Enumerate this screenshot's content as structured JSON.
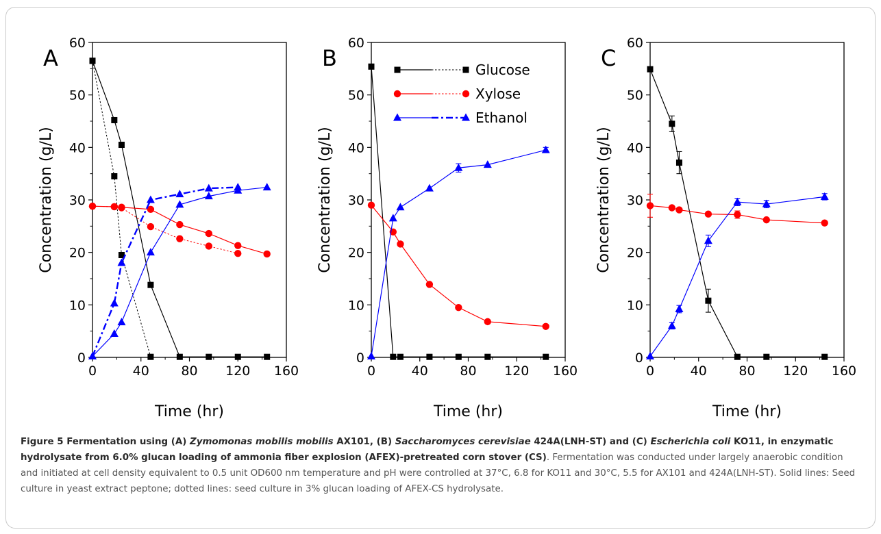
{
  "chart_data": [
    {
      "panel_label": "A",
      "type": "line",
      "xlabel": "Time (hr)",
      "ylabel": "Concentration (g/L)",
      "xlim": [
        0,
        160
      ],
      "ylim": [
        0,
        60
      ],
      "xticks": [
        0,
        40,
        80,
        120,
        160
      ],
      "yticks": [
        0,
        10,
        20,
        30,
        40,
        50,
        60
      ],
      "series": [
        {
          "name": "Glucose",
          "color": "#000000",
          "marker": "square",
          "dash": "solid",
          "x": [
            0,
            18,
            24,
            48,
            72,
            96,
            120,
            144
          ],
          "y": [
            56.5,
            45.2,
            40.5,
            13.8,
            0.1,
            0.1,
            0.1,
            0.1
          ]
        },
        {
          "name": "Glucose",
          "color": "#000000",
          "marker": "square",
          "dash": "dotted",
          "x": [
            0,
            18,
            24,
            48
          ],
          "y": [
            56.5,
            34.5,
            19.5,
            0.1
          ]
        },
        {
          "name": "Xylose",
          "color": "#ff0000",
          "marker": "circle",
          "dash": "solid",
          "x": [
            0,
            18,
            24,
            48,
            72,
            96,
            120,
            144
          ],
          "y": [
            28.8,
            28.7,
            28.6,
            28.2,
            25.3,
            23.6,
            21.3,
            19.7
          ]
        },
        {
          "name": "Xylose",
          "color": "#ff0000",
          "marker": "circle",
          "dash": "dotted",
          "x": [
            0,
            18,
            24,
            48,
            72,
            96,
            120
          ],
          "y": [
            28.8,
            28.7,
            28.5,
            24.9,
            22.6,
            21.2,
            19.8
          ]
        },
        {
          "name": "Ethanol",
          "color": "#0000ff",
          "marker": "triangle",
          "dash": "solid",
          "x": [
            0,
            18,
            24,
            48,
            72,
            96,
            120,
            144
          ],
          "y": [
            0.2,
            4.5,
            6.7,
            20.0,
            29.1,
            30.7,
            31.8,
            32.4
          ]
        },
        {
          "name": "Ethanol",
          "color": "#0000ff",
          "marker": "triangle",
          "dash": "dashdot",
          "x": [
            0,
            18,
            24,
            48,
            72,
            96,
            120
          ],
          "y": [
            0.2,
            10.3,
            18.0,
            30.0,
            31.1,
            32.2,
            32.4
          ]
        }
      ]
    },
    {
      "panel_label": "B",
      "type": "line",
      "xlabel": "Time (hr)",
      "ylabel": "Concentration (g/L)",
      "xlim": [
        0,
        160
      ],
      "ylim": [
        0,
        60
      ],
      "xticks": [
        0,
        40,
        80,
        120,
        160
      ],
      "yticks": [
        0,
        10,
        20,
        30,
        40,
        50,
        60
      ],
      "series": [
        {
          "name": "Glucose",
          "color": "#000000",
          "marker": "square",
          "dash": "solid",
          "x": [
            0,
            18,
            24,
            48,
            72,
            96,
            144
          ],
          "y": [
            55.4,
            0.1,
            0.1,
            0.1,
            0.1,
            0.1,
            0.1
          ]
        },
        {
          "name": "Xylose",
          "color": "#ff0000",
          "marker": "circle",
          "dash": "solid",
          "x": [
            0,
            18,
            24,
            48,
            72,
            96,
            144
          ],
          "y": [
            29.0,
            23.9,
            21.6,
            13.9,
            9.5,
            6.8,
            5.9
          ]
        },
        {
          "name": "Ethanol",
          "color": "#0000ff",
          "marker": "triangle",
          "dash": "solid",
          "x": [
            0,
            18,
            24,
            48,
            72,
            96,
            144
          ],
          "y": [
            0.2,
            26.5,
            28.6,
            32.2,
            36.1,
            36.7,
            39.5
          ],
          "err": [
            0,
            0,
            0,
            0,
            0.8,
            0,
            0.5
          ]
        }
      ]
    },
    {
      "panel_label": "C",
      "type": "line",
      "xlabel": "Time (hr)",
      "ylabel": "Concentration (g/L)",
      "xlim": [
        0,
        160
      ],
      "ylim": [
        0,
        60
      ],
      "xticks": [
        0,
        40,
        80,
        120,
        160
      ],
      "yticks": [
        0,
        10,
        20,
        30,
        40,
        50,
        60
      ],
      "series": [
        {
          "name": "Glucose",
          "color": "#000000",
          "marker": "square",
          "dash": "solid",
          "x": [
            0,
            18,
            24,
            48,
            72,
            96,
            144
          ],
          "y": [
            54.9,
            44.5,
            37.1,
            10.8,
            0.1,
            0.1,
            0.1
          ],
          "err": [
            0,
            1.5,
            2.1,
            2.2,
            0,
            0,
            0
          ]
        },
        {
          "name": "Xylose",
          "color": "#ff0000",
          "marker": "circle",
          "dash": "solid",
          "x": [
            0,
            18,
            24,
            48,
            72,
            96,
            144
          ],
          "y": [
            28.9,
            28.5,
            28.1,
            27.3,
            27.2,
            26.2,
            25.6
          ],
          "err": [
            2.2,
            0,
            0,
            0,
            0.7,
            0,
            0
          ]
        },
        {
          "name": "Ethanol",
          "color": "#0000ff",
          "marker": "triangle",
          "dash": "solid",
          "x": [
            0,
            18,
            24,
            48,
            72,
            96,
            144
          ],
          "y": [
            0.2,
            6.0,
            9.2,
            22.2,
            29.6,
            29.2,
            30.6
          ],
          "err": [
            0,
            0.6,
            0.7,
            1.1,
            0.7,
            0.7,
            0.6
          ]
        }
      ]
    }
  ],
  "legend": {
    "location": "panel B top",
    "entries": [
      {
        "label": "Glucose",
        "color": "#000000",
        "marker": "square"
      },
      {
        "label": "Xylose",
        "color": "#ff0000",
        "marker": "circle"
      },
      {
        "label": "Ethanol",
        "color": "#0000ff",
        "marker": "triangle"
      }
    ]
  },
  "caption": {
    "figure_label": "Figure 5",
    "t1": " Fermentation using (A) ",
    "species_a": "Zymomonas mobilis mobilis",
    "t2": " AX101, (B) ",
    "species_b": "Saccharomyces cerevisiae",
    "t3": " 424A(LNH-ST) and (C) ",
    "species_c": "Escherichia coli",
    "t4": " KO11, in enzymatic hydrolysate from 6.0% glucan loading of ammonia fiber explosion (AFEX)-pretreated corn stover (CS)",
    "body": ". Fermentation was conducted under largely anaerobic condition and initiated at cell density equivalent to 0.5 unit OD600 nm temperature and pH were controlled at 37°C, 6.8 for KO11 and 30°C, 5.5 for AX101 and 424A(LNH-ST). Solid lines: Seed culture in yeast extract peptone; dotted lines: seed culture in 3% glucan loading of AFEX-CS hydrolysate."
  }
}
